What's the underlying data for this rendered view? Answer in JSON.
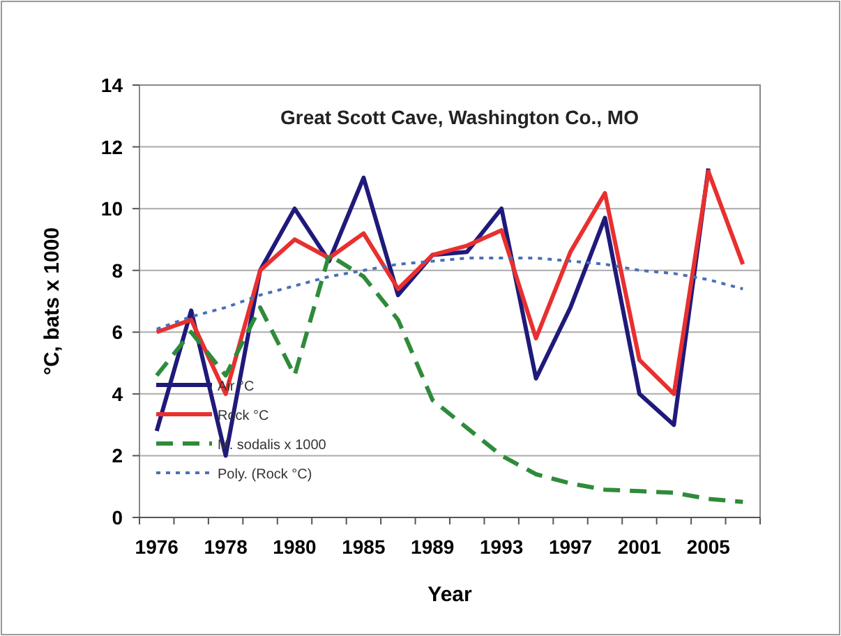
{
  "chart_data": {
    "type": "line",
    "title": "Great Scott Cave, Washington Co., MO",
    "xlabel": "Year",
    "ylabel": "°C, bats x 1000",
    "categories": [
      "1976",
      null,
      "1978",
      null,
      "1980",
      null,
      "1985",
      null,
      "1989",
      null,
      "1993",
      null,
      "1997",
      null,
      "2001",
      null,
      "2005",
      null
    ],
    "series": [
      {
        "name": "Air °C",
        "color": "#1f1a7a",
        "line_style": "solid",
        "values": [
          2.8,
          6.7,
          2.0,
          8.0,
          10.0,
          8.3,
          11.0,
          7.2,
          8.5,
          8.6,
          10.0,
          4.5,
          6.8,
          9.7,
          4.0,
          3.0,
          11.3,
          null
        ]
      },
      {
        "name": "Rock °C",
        "color": "#e8302f",
        "line_style": "solid",
        "values": [
          6.0,
          6.4,
          4.0,
          8.0,
          9.0,
          8.4,
          9.2,
          7.4,
          8.5,
          8.8,
          9.3,
          5.8,
          8.6,
          10.5,
          5.1,
          4.0,
          11.2,
          8.2
        ]
      },
      {
        "name": "M. sodalis x 1000",
        "color": "#2e8b3a",
        "line_style": "dashed",
        "values": [
          4.6,
          6.0,
          4.6,
          6.8,
          4.6,
          8.5,
          7.8,
          6.4,
          3.8,
          2.9,
          2.0,
          1.4,
          1.1,
          0.9,
          0.85,
          0.8,
          0.6,
          0.5
        ]
      },
      {
        "name": "Poly. (Rock °C)",
        "color": "#4a6fb5",
        "line_style": "dotted",
        "values": [
          6.1,
          6.5,
          6.8,
          7.2,
          7.5,
          7.8,
          8.0,
          8.2,
          8.3,
          8.4,
          8.4,
          8.4,
          8.3,
          8.2,
          8.0,
          7.9,
          7.7,
          7.4
        ]
      }
    ],
    "ylim": [
      0,
      14
    ],
    "yticks": [
      0,
      2,
      4,
      6,
      8,
      10,
      12,
      14
    ],
    "grid": "y",
    "legend": "bottom left",
    "marker": "none"
  }
}
